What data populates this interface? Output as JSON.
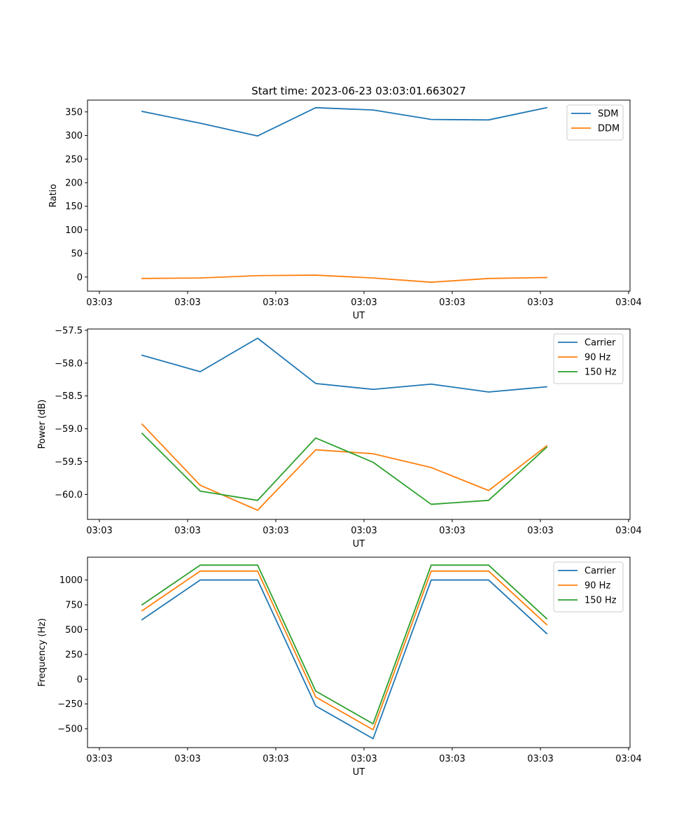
{
  "chart_data": [
    {
      "type": "line",
      "title": "Start time: 2023-06-23 03:03:01.663027",
      "xlabel": "UT",
      "ylabel": "Ratio",
      "x_tick_labels": [
        "03:03",
        "03:03",
        "03:03",
        "03:03",
        "03:03",
        "03:03",
        "03:04"
      ],
      "ylim": [
        -30,
        375
      ],
      "y_ticks": [
        0,
        50,
        100,
        150,
        200,
        250,
        300,
        350
      ],
      "y_tick_labels": [
        "0",
        "50",
        "100",
        "150",
        "200",
        "250",
        "300",
        "350"
      ],
      "legend_position": "top-right",
      "series": [
        {
          "name": "SDM",
          "color": "#1f77b4",
          "values": [
            351,
            326,
            299,
            359,
            354,
            334,
            333,
            359
          ]
        },
        {
          "name": "DDM",
          "color": "#ff7f0e",
          "values": [
            -3,
            -2,
            3,
            4,
            -2,
            -11,
            -3,
            -1
          ]
        }
      ]
    },
    {
      "type": "line",
      "title": "",
      "xlabel": "UT",
      "ylabel": "Power (dB)",
      "x_tick_labels": [
        "03:03",
        "03:03",
        "03:03",
        "03:03",
        "03:03",
        "03:03",
        "03:04"
      ],
      "ylim": [
        -60.38,
        -57.48
      ],
      "y_ticks": [
        -60.0,
        -59.5,
        -59.0,
        -58.5,
        -58.0,
        -57.5
      ],
      "y_tick_labels": [
        "−60.0",
        "−59.5",
        "−59.0",
        "−58.5",
        "−58.0",
        "−57.5"
      ],
      "legend_position": "top-right",
      "series": [
        {
          "name": "Carrier",
          "color": "#1f77b4",
          "values": [
            -57.88,
            -58.13,
            -57.62,
            -58.31,
            -58.4,
            -58.32,
            -58.44,
            -58.36
          ]
        },
        {
          "name": "90 Hz",
          "color": "#ff7f0e",
          "values": [
            -58.93,
            -59.86,
            -60.24,
            -59.32,
            -59.38,
            -59.59,
            -59.94,
            -59.26
          ]
        },
        {
          "name": "150 Hz",
          "color": "#2ca02c",
          "values": [
            -59.07,
            -59.95,
            -60.09,
            -59.14,
            -59.51,
            -60.15,
            -60.09,
            -59.28
          ]
        }
      ]
    },
    {
      "type": "line",
      "title": "",
      "xlabel": "UT",
      "ylabel": "Frequency (Hz)",
      "x_tick_labels": [
        "03:03",
        "03:03",
        "03:03",
        "03:03",
        "03:03",
        "03:03",
        "03:04"
      ],
      "ylim": [
        -690,
        1230
      ],
      "y_ticks": [
        -500,
        -250,
        0,
        250,
        500,
        750,
        1000
      ],
      "y_tick_labels": [
        "−500",
        "−250",
        "0",
        "250",
        "500",
        "750",
        "1000"
      ],
      "legend_position": "top-right",
      "series": [
        {
          "name": "Carrier",
          "color": "#1f77b4",
          "values": [
            600,
            1000,
            1000,
            -270,
            -600,
            1000,
            1000,
            460
          ]
        },
        {
          "name": "90 Hz",
          "color": "#ff7f0e",
          "values": [
            690,
            1090,
            1090,
            -180,
            -510,
            1090,
            1090,
            550
          ]
        },
        {
          "name": "150 Hz",
          "color": "#2ca02c",
          "values": [
            750,
            1150,
            1150,
            -120,
            -450,
            1150,
            1150,
            610
          ]
        }
      ]
    }
  ]
}
